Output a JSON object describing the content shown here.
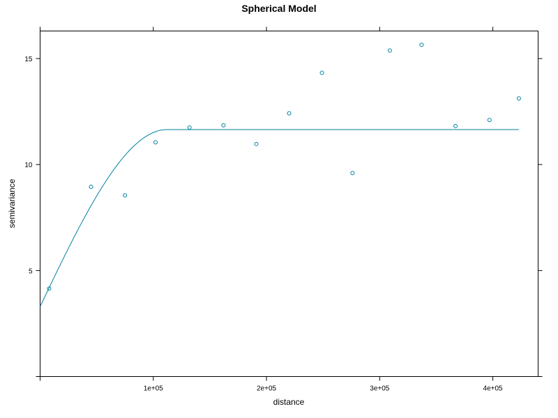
{
  "chart_data": {
    "type": "scatter",
    "title": "Spherical Model",
    "xlabel": "distance",
    "ylabel": "semivariance",
    "xlim": [
      0,
      440000
    ],
    "ylim": [
      0,
      16.3
    ],
    "x_ticks": [
      100000,
      200000,
      300000,
      400000
    ],
    "x_tick_labels": [
      "1e+05",
      "2e+05",
      "3e+05",
      "4e+05"
    ],
    "y_ticks": [
      5,
      10,
      15
    ],
    "y_tick_labels": [
      "5",
      "10",
      "15"
    ],
    "grid": false,
    "color": "#0080a0",
    "points": [
      {
        "x": 8000,
        "y": 4.15
      },
      {
        "x": 45000,
        "y": 8.95
      },
      {
        "x": 75000,
        "y": 8.55
      },
      {
        "x": 102000,
        "y": 11.05
      },
      {
        "x": 132000,
        "y": 11.75
      },
      {
        "x": 162000,
        "y": 11.85
      },
      {
        "x": 191000,
        "y": 10.97
      },
      {
        "x": 220000,
        "y": 12.42
      },
      {
        "x": 249000,
        "y": 14.33
      },
      {
        "x": 276000,
        "y": 9.6
      },
      {
        "x": 309000,
        "y": 15.38
      },
      {
        "x": 337000,
        "y": 15.65
      },
      {
        "x": 367000,
        "y": 11.82
      },
      {
        "x": 397000,
        "y": 12.1
      },
      {
        "x": 423000,
        "y": 13.12
      }
    ],
    "model": {
      "type": "spherical",
      "nugget": 3.3,
      "partial_sill": 8.35,
      "range": 112000,
      "x_end": 423000
    }
  }
}
